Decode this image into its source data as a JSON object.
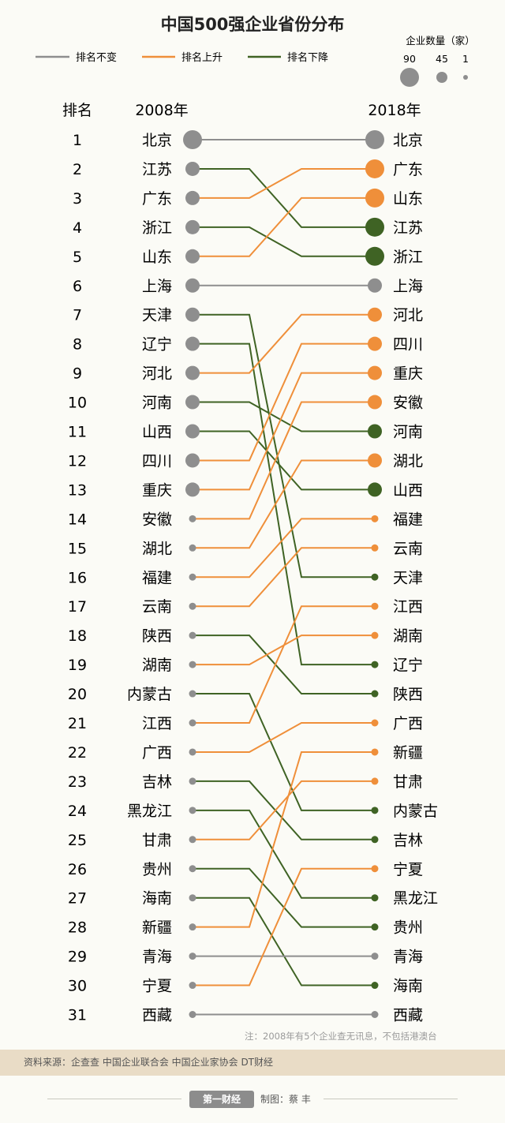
{
  "chart_data": {
    "type": "slope",
    "title": "中国500强企业省份分布",
    "legend": [
      {
        "label": "排名不变",
        "color": "#8e8e8e"
      },
      {
        "label": "排名上升",
        "color": "#ef8f3a"
      },
      {
        "label": "排名下降",
        "color": "#3f6324"
      }
    ],
    "size_legend": {
      "title": "企业数量（家）",
      "values": [
        "90",
        "45",
        "1"
      ]
    },
    "rank_header": "排名",
    "left_header": "2008年",
    "right_header": "2018年",
    "ranks": [
      "1",
      "2",
      "3",
      "4",
      "5",
      "6",
      "7",
      "8",
      "9",
      "10",
      "11",
      "12",
      "13",
      "14",
      "15",
      "16",
      "17",
      "18",
      "19",
      "20",
      "21",
      "22",
      "23",
      "24",
      "25",
      "26",
      "27",
      "28",
      "29",
      "30",
      "31"
    ],
    "left": [
      "北京",
      "江苏",
      "广东",
      "浙江",
      "山东",
      "上海",
      "天津",
      "辽宁",
      "河北",
      "河南",
      "山西",
      "四川",
      "重庆",
      "安徽",
      "湖北",
      "福建",
      "云南",
      "陕西",
      "湖南",
      "内蒙古",
      "江西",
      "广西",
      "吉林",
      "黑龙江",
      "甘肃",
      "贵州",
      "海南",
      "新疆",
      "青海",
      "宁夏",
      "西藏"
    ],
    "right": [
      "北京",
      "广东",
      "山东",
      "江苏",
      "浙江",
      "上海",
      "河北",
      "四川",
      "重庆",
      "安徽",
      "河南",
      "湖北",
      "山西",
      "福建",
      "云南",
      "天津",
      "江西",
      "湖南",
      "辽宁",
      "陕西",
      "广西",
      "新疆",
      "甘肃",
      "内蒙古",
      "吉林",
      "宁夏",
      "黑龙江",
      "贵州",
      "青海",
      "海南",
      "西藏"
    ],
    "left_size": [
      3,
      2,
      2,
      2,
      2,
      2,
      2,
      2,
      2,
      2,
      2,
      2,
      2,
      1,
      1,
      1,
      1,
      1,
      1,
      1,
      1,
      1,
      1,
      1,
      1,
      1,
      1,
      1,
      1,
      1,
      1
    ],
    "right_size": [
      3,
      3,
      3,
      3,
      3,
      2,
      2,
      2,
      2,
      2,
      2,
      2,
      2,
      1,
      1,
      1,
      1,
      1,
      1,
      1,
      1,
      1,
      1,
      1,
      1,
      1,
      1,
      1,
      1,
      1,
      1
    ],
    "note": "注：2008年有5个企业查无讯息，不包括港澳台"
  },
  "footer": {
    "source": "资料来源：企查查    中国企业联合会    中国企业家协会    DT财经",
    "logo": "第一财经",
    "maker": "制图：蔡 丰"
  }
}
